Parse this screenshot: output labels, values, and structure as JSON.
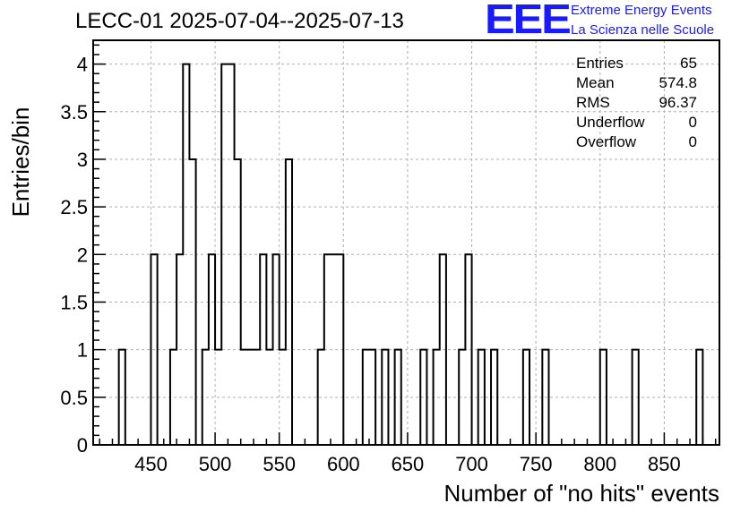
{
  "chart_data": {
    "type": "bar",
    "title": "LECC-01 2025-07-04--2025-07-13",
    "xlabel": "Number of \"no hits\" events",
    "ylabel": "Entries/bin",
    "xlim": [
      405,
      893
    ],
    "ylim": [
      0,
      4.25
    ],
    "bin_width": 5,
    "grid": true,
    "x_ticks": [
      450,
      500,
      550,
      600,
      650,
      700,
      750,
      800,
      850
    ],
    "y_ticks": [
      0,
      0.5,
      1,
      1.5,
      2,
      2.5,
      3,
      3.5,
      4
    ],
    "x_tick_labels": [
      "450",
      "500",
      "550",
      "600",
      "650",
      "700",
      "750",
      "800",
      "850"
    ],
    "y_tick_labels": [
      "0",
      "0.5",
      "1",
      "1.5",
      "2",
      "2.5",
      "3",
      "3.5",
      "4"
    ],
    "bins": [
      {
        "x": 425,
        "value": 1
      },
      {
        "x": 450,
        "value": 2
      },
      {
        "x": 465,
        "value": 1
      },
      {
        "x": 470,
        "value": 2
      },
      {
        "x": 475,
        "value": 4
      },
      {
        "x": 480,
        "value": 3
      },
      {
        "x": 490,
        "value": 1
      },
      {
        "x": 495,
        "value": 2
      },
      {
        "x": 500,
        "value": 1
      },
      {
        "x": 505,
        "value": 4
      },
      {
        "x": 510,
        "value": 4
      },
      {
        "x": 515,
        "value": 3
      },
      {
        "x": 520,
        "value": 1
      },
      {
        "x": 525,
        "value": 1
      },
      {
        "x": 530,
        "value": 1
      },
      {
        "x": 535,
        "value": 2
      },
      {
        "x": 540,
        "value": 1
      },
      {
        "x": 545,
        "value": 2
      },
      {
        "x": 550,
        "value": 1
      },
      {
        "x": 555,
        "value": 3
      },
      {
        "x": 580,
        "value": 1
      },
      {
        "x": 585,
        "value": 2
      },
      {
        "x": 590,
        "value": 2
      },
      {
        "x": 595,
        "value": 2
      },
      {
        "x": 615,
        "value": 1
      },
      {
        "x": 620,
        "value": 1
      },
      {
        "x": 630,
        "value": 1
      },
      {
        "x": 640,
        "value": 1
      },
      {
        "x": 660,
        "value": 1
      },
      {
        "x": 670,
        "value": 1
      },
      {
        "x": 675,
        "value": 2
      },
      {
        "x": 690,
        "value": 1
      },
      {
        "x": 695,
        "value": 2
      },
      {
        "x": 705,
        "value": 1
      },
      {
        "x": 715,
        "value": 1
      },
      {
        "x": 740,
        "value": 1
      },
      {
        "x": 755,
        "value": 1
      },
      {
        "x": 800,
        "value": 1
      },
      {
        "x": 825,
        "value": 1
      },
      {
        "x": 875,
        "value": 1
      }
    ]
  },
  "stats": {
    "rows": [
      {
        "label": "Entries",
        "value": "65"
      },
      {
        "label": "Mean",
        "value": "574.8"
      },
      {
        "label": "RMS",
        "value": "96.37"
      },
      {
        "label": "Underflow",
        "value": "0"
      },
      {
        "label": "Overflow",
        "value": "0"
      }
    ]
  },
  "logo": {
    "mark": "EEE",
    "line1": "Extreme Energy Events",
    "line2": "La Scienza nelle Scuole",
    "color": "#1a1aff"
  }
}
